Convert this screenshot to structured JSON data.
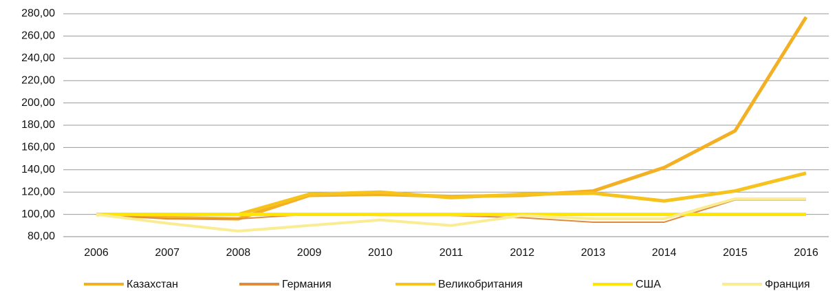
{
  "chart_data": {
    "type": "line",
    "categories": [
      "2006",
      "2007",
      "2008",
      "2009",
      "2010",
      "2011",
      "2012",
      "2013",
      "2014",
      "2015",
      "2016"
    ],
    "series": [
      {
        "name": "Казахстан",
        "color": "#f4b024",
        "width": 5,
        "values": [
          100,
          97,
          96,
          117,
          118,
          116,
          117,
          121,
          142,
          175,
          277
        ]
      },
      {
        "name": "Германия",
        "color": "#e08a3c",
        "width": 2,
        "values": [
          100,
          96,
          96,
          100,
          99,
          99,
          97,
          93,
          93,
          113,
          113
        ]
      },
      {
        "name": "Великобритания",
        "color": "#f6c21c",
        "width": 5,
        "values": [
          100,
          100,
          100,
          118,
          120,
          115,
          118,
          119,
          112,
          121,
          137
        ]
      },
      {
        "name": "США",
        "color": "#ffe600",
        "width": 5,
        "values": [
          100,
          100,
          100,
          100,
          100,
          100,
          100,
          100,
          100,
          100,
          100
        ]
      },
      {
        "name": "Франция",
        "color": "#faec92",
        "width": 4,
        "values": [
          100,
          92,
          85,
          90,
          95,
          90,
          99,
          96,
          96,
          114,
          114
        ]
      }
    ],
    "ylim": [
      80,
      280
    ],
    "yticks": [
      {
        "value": 80,
        "label": "80,00"
      },
      {
        "value": 100,
        "label": "100,00"
      },
      {
        "value": 120,
        "label": "120,00"
      },
      {
        "value": 140,
        "label": "140,00"
      },
      {
        "value": 160,
        "label": "160,00"
      },
      {
        "value": 180,
        "label": "180,00"
      },
      {
        "value": 200,
        "label": "200,00"
      },
      {
        "value": 220,
        "label": "220,00"
      },
      {
        "value": 240,
        "label": "240,00"
      },
      {
        "value": 260,
        "label": "260,00"
      },
      {
        "value": 280,
        "label": "280,00"
      }
    ],
    "grid": true,
    "legend": "bottom"
  }
}
